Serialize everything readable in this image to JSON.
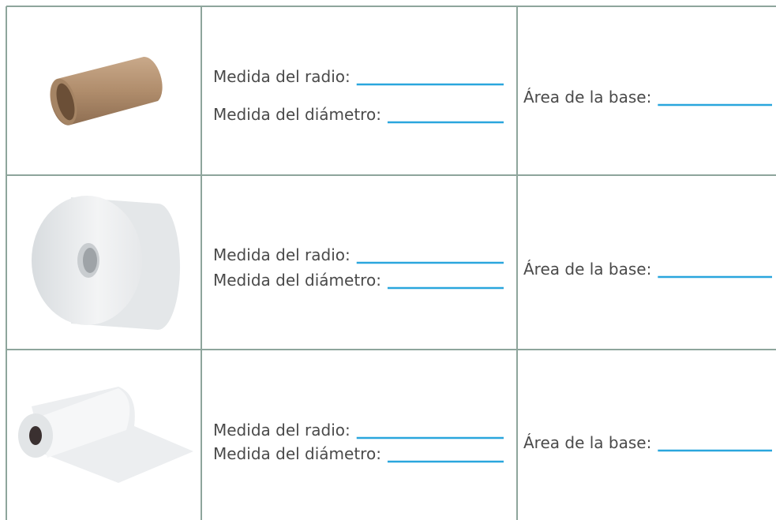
{
  "table": {
    "rows": [
      [
        "Medida del radio:",
        "Medida del diámetro:",
        "Área de la base:"
      ],
      [
        "Medida del radio:",
        "Medida del diámetro:",
        "Área de la base:"
      ],
      [
        "Medida del radio:",
        "Medida del diámetro:",
        "Área de la base:"
      ]
    ]
  }
}
